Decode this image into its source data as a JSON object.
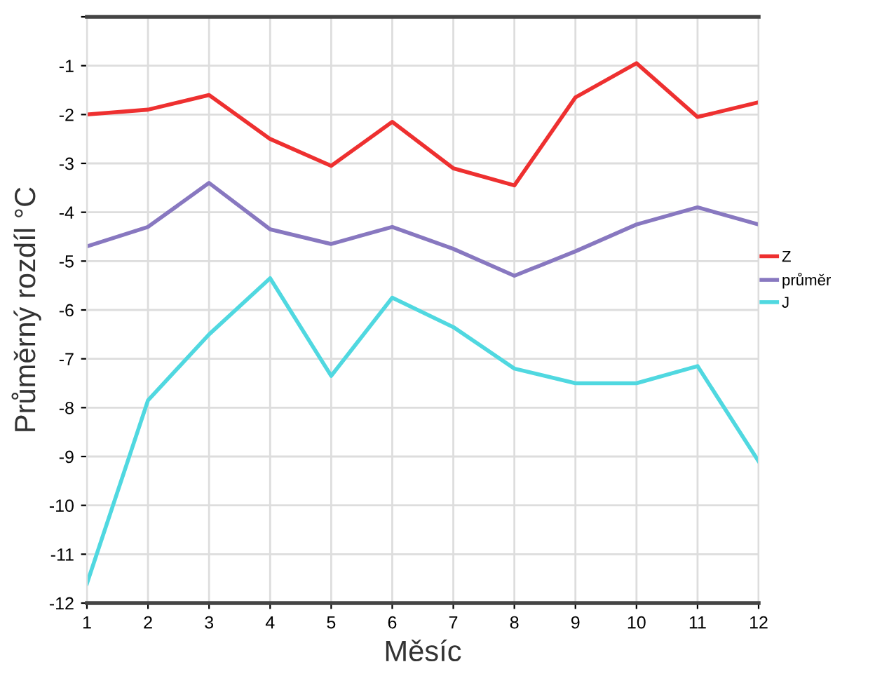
{
  "chart_data": {
    "type": "line",
    "xlabel": "Měsíc",
    "ylabel": "Průměrný rozdíl °C",
    "x": [
      1,
      2,
      3,
      4,
      5,
      6,
      7,
      8,
      9,
      10,
      11,
      12
    ],
    "series": [
      {
        "name": "Z",
        "color": "#ee3030",
        "values": [
          -2.0,
          -1.9,
          -1.6,
          -2.5,
          -3.05,
          -2.15,
          -3.1,
          -3.45,
          -1.65,
          -0.95,
          -2.05,
          -1.75
        ]
      },
      {
        "name": "průměr",
        "color": "#8878c0",
        "values": [
          -4.7,
          -4.3,
          -3.4,
          -4.35,
          -4.65,
          -4.3,
          -4.75,
          -5.3,
          -4.8,
          -4.25,
          -3.9,
          -4.25
        ]
      },
      {
        "name": "J",
        "color": "#50d8e0",
        "values": [
          -11.6,
          -7.85,
          -6.5,
          -5.35,
          -7.35,
          -5.75,
          -6.35,
          -7.2,
          -7.5,
          -7.5,
          -7.15,
          -9.1
        ]
      }
    ],
    "xlim": [
      1,
      12
    ],
    "ylim": [
      -12,
      0
    ],
    "xticks": [
      1,
      2,
      3,
      4,
      5,
      6,
      7,
      8,
      9,
      10,
      11,
      12
    ],
    "yticks": [
      -12,
      -11,
      -10,
      -9,
      -8,
      -7,
      -6,
      -5,
      -4,
      -3,
      -2,
      -1,
      {
        "value": 0,
        "label": null
      }
    ],
    "grid": true,
    "legend": "right",
    "marker": "none",
    "line_style": "solid"
  }
}
